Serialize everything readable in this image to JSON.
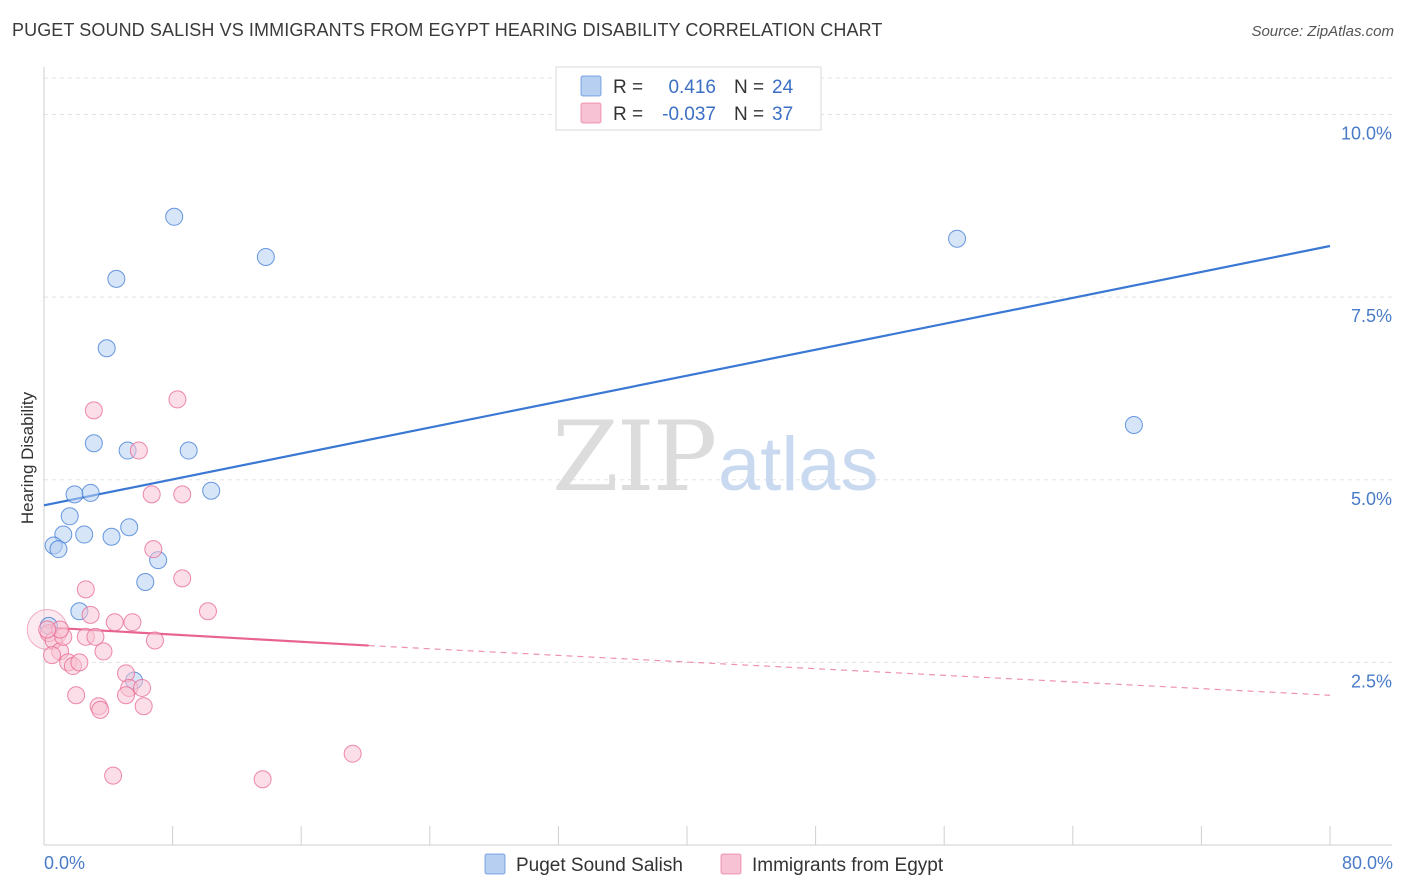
{
  "header": {
    "title": "PUGET SOUND SALISH VS IMMIGRANTS FROM EGYPT HEARING DISABILITY CORRELATION CHART",
    "source": "Source: ZipAtlas.com"
  },
  "watermark": {
    "zip": "ZIP",
    "atlas": "atlas"
  },
  "stats_legend": {
    "rows": [
      {
        "r_label": "R =",
        "r_value": "0.416",
        "n_label": "N =",
        "n_value": "24",
        "color": "#a9c8f0"
      },
      {
        "r_label": "R =",
        "r_value": "-0.037",
        "n_label": "N =",
        "n_value": "37",
        "color": "#f5b8cb"
      }
    ]
  },
  "chart_data": {
    "type": "scatter",
    "title": "PUGET SOUND SALISH VS IMMIGRANTS FROM EGYPT HEARING DISABILITY CORRELATION CHART",
    "xlabel": "",
    "ylabel": "Hearing Disability",
    "xlim": [
      0,
      80
    ],
    "ylim": [
      0,
      10.5
    ],
    "x_tick_labels": [
      "0.0%",
      "80.0%"
    ],
    "y_ticks": [
      2.5,
      5.0,
      7.5,
      10.0
    ],
    "y_tick_labels": [
      "2.5%",
      "5.0%",
      "7.5%",
      "10.0%"
    ],
    "grid": true,
    "legend": [
      "Puget Sound Salish",
      "Immigrants from Egypt"
    ],
    "series": [
      {
        "name": "Puget Sound Salish",
        "color": "#3a78d4",
        "fill": "#b7d0f2",
        "points": [
          [
            8.1,
            8.6
          ],
          [
            13.8,
            8.05
          ],
          [
            4.5,
            7.75
          ],
          [
            3.9,
            6.8
          ],
          [
            3.1,
            5.5
          ],
          [
            5.2,
            5.4
          ],
          [
            9.0,
            5.4
          ],
          [
            1.9,
            4.8
          ],
          [
            2.9,
            4.82
          ],
          [
            10.4,
            4.85
          ],
          [
            1.6,
            4.5
          ],
          [
            1.2,
            4.25
          ],
          [
            2.5,
            4.25
          ],
          [
            5.3,
            4.35
          ],
          [
            4.2,
            4.22
          ],
          [
            0.6,
            4.1
          ],
          [
            0.9,
            4.05
          ],
          [
            7.1,
            3.9
          ],
          [
            6.3,
            3.6
          ],
          [
            2.2,
            3.2
          ],
          [
            0.3,
            3.0
          ],
          [
            5.6,
            2.25
          ],
          [
            56.8,
            8.3
          ],
          [
            67.8,
            5.75
          ]
        ],
        "trend": {
          "x": [
            0,
            80
          ],
          "y": [
            4.65,
            8.2
          ]
        }
      },
      {
        "name": "Immigrants from Egypt",
        "color": "#e8648f",
        "fill": "#f7c2d3",
        "points": [
          [
            0.3,
            2.9
          ],
          [
            0.6,
            2.8
          ],
          [
            1.0,
            2.65
          ],
          [
            1.2,
            2.85
          ],
          [
            1.5,
            2.5
          ],
          [
            1.8,
            2.45
          ],
          [
            2.2,
            2.5
          ],
          [
            2.6,
            2.85
          ],
          [
            2.9,
            3.15
          ],
          [
            2.6,
            3.5
          ],
          [
            3.2,
            2.85
          ],
          [
            3.7,
            2.65
          ],
          [
            3.1,
            5.95
          ],
          [
            2.0,
            2.05
          ],
          [
            3.4,
            1.9
          ],
          [
            3.5,
            1.85
          ],
          [
            4.3,
            0.95
          ],
          [
            4.4,
            3.05
          ],
          [
            5.1,
            2.35
          ],
          [
            5.3,
            2.15
          ],
          [
            5.1,
            2.05
          ],
          [
            5.5,
            3.05
          ],
          [
            6.1,
            2.15
          ],
          [
            6.2,
            1.9
          ],
          [
            6.9,
            2.8
          ],
          [
            5.9,
            5.4
          ],
          [
            6.7,
            4.8
          ],
          [
            6.8,
            4.05
          ],
          [
            8.3,
            6.1
          ],
          [
            8.6,
            4.8
          ],
          [
            8.6,
            3.65
          ],
          [
            10.2,
            3.2
          ],
          [
            13.6,
            0.9
          ],
          [
            19.2,
            1.25
          ],
          [
            1.0,
            2.95
          ],
          [
            0.5,
            2.6
          ],
          [
            0.2,
            2.95
          ]
        ],
        "trend_solid": {
          "x": [
            0,
            20.2
          ],
          "y": [
            2.98,
            2.73
          ]
        },
        "trend_dashed": {
          "x": [
            20.2,
            80
          ],
          "y": [
            2.73,
            2.05
          ]
        }
      }
    ]
  }
}
